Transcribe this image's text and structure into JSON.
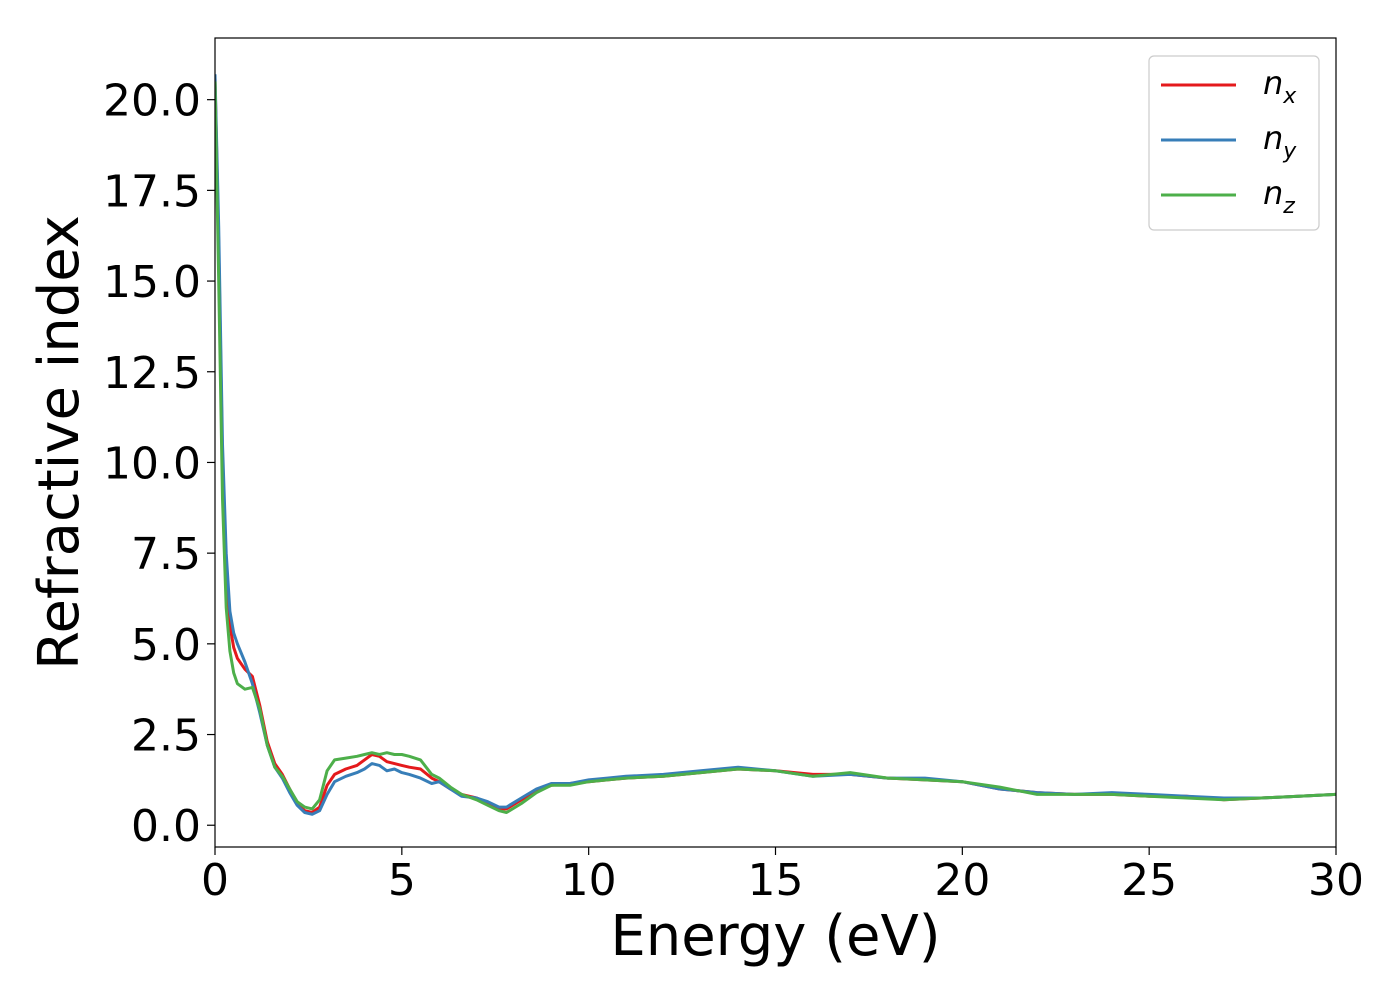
{
  "chart_data": {
    "type": "line",
    "xlabel": "Energy (eV)",
    "ylabel": "Refractive index",
    "xlim": [
      0,
      30
    ],
    "ylim": [
      -0.6,
      21.7
    ],
    "xticks": [
      0,
      5,
      10,
      15,
      20,
      25,
      30
    ],
    "xtick_labels": [
      "0",
      "5",
      "10",
      "15",
      "20",
      "25",
      "30"
    ],
    "yticks": [
      0,
      2.5,
      5,
      7.5,
      10,
      12.5,
      15,
      17.5,
      20
    ],
    "ytick_labels": [
      "0.0",
      "2.5",
      "5.0",
      "7.5",
      "10.0",
      "12.5",
      "15.0",
      "17.5",
      "20.0"
    ],
    "grid": false,
    "legend_position": "top-right",
    "series": [
      {
        "name": "n_x",
        "name_main": "n",
        "name_sub": "x",
        "color": "#e41a1c",
        "x": [
          0.0,
          0.1,
          0.2,
          0.3,
          0.4,
          0.5,
          0.6,
          0.8,
          1.0,
          1.2,
          1.4,
          1.6,
          1.8,
          2.0,
          2.2,
          2.4,
          2.6,
          2.8,
          3.0,
          3.2,
          3.5,
          3.8,
          4.0,
          4.2,
          4.4,
          4.6,
          4.8,
          5.0,
          5.2,
          5.5,
          5.8,
          6.0,
          6.3,
          6.6,
          7.0,
          7.3,
          7.6,
          7.8,
          8.2,
          8.6,
          9.0,
          9.5,
          10.0,
          10.5,
          11.0,
          12.0,
          13.0,
          14.0,
          15.0,
          16.0,
          17.0,
          18.0,
          19.0,
          20.0,
          21.0,
          22.0,
          23.0,
          24.0,
          25.0,
          26.0,
          27.0,
          28.0,
          29.0,
          30.0
        ],
        "y": [
          20.6,
          16.0,
          10.0,
          7.0,
          5.5,
          4.9,
          4.6,
          4.3,
          4.1,
          3.3,
          2.3,
          1.7,
          1.4,
          1.0,
          0.6,
          0.4,
          0.35,
          0.5,
          1.1,
          1.4,
          1.55,
          1.65,
          1.8,
          1.95,
          1.9,
          1.75,
          1.7,
          1.65,
          1.6,
          1.55,
          1.3,
          1.2,
          1.0,
          0.85,
          0.75,
          0.6,
          0.45,
          0.45,
          0.7,
          0.95,
          1.1,
          1.15,
          1.2,
          1.25,
          1.3,
          1.35,
          1.45,
          1.55,
          1.5,
          1.4,
          1.4,
          1.3,
          1.25,
          1.2,
          1.0,
          0.9,
          0.85,
          0.85,
          0.8,
          0.8,
          0.7,
          0.75,
          0.8,
          0.85
        ]
      },
      {
        "name": "n_y",
        "name_main": "n",
        "name_sub": "y",
        "color": "#377eb8",
        "x": [
          0.0,
          0.1,
          0.2,
          0.3,
          0.4,
          0.5,
          0.6,
          0.8,
          1.0,
          1.2,
          1.4,
          1.6,
          1.8,
          2.0,
          2.2,
          2.4,
          2.6,
          2.8,
          3.0,
          3.2,
          3.5,
          3.8,
          4.0,
          4.2,
          4.4,
          4.6,
          4.8,
          5.0,
          5.2,
          5.5,
          5.8,
          6.0,
          6.3,
          6.6,
          7.0,
          7.3,
          7.6,
          7.8,
          8.2,
          8.6,
          9.0,
          9.5,
          10.0,
          10.5,
          11.0,
          12.0,
          13.0,
          14.0,
          15.0,
          16.0,
          17.0,
          18.0,
          19.0,
          20.0,
          21.0,
          22.0,
          23.0,
          24.0,
          25.0,
          26.0,
          27.0,
          28.0,
          29.0,
          30.0
        ],
        "y": [
          20.7,
          16.5,
          10.5,
          7.5,
          5.9,
          5.3,
          5.0,
          4.5,
          3.9,
          3.1,
          2.2,
          1.6,
          1.3,
          0.9,
          0.55,
          0.35,
          0.3,
          0.4,
          0.85,
          1.2,
          1.35,
          1.45,
          1.55,
          1.7,
          1.65,
          1.5,
          1.55,
          1.45,
          1.4,
          1.3,
          1.15,
          1.2,
          1.0,
          0.8,
          0.75,
          0.65,
          0.5,
          0.5,
          0.75,
          1.0,
          1.15,
          1.15,
          1.25,
          1.3,
          1.35,
          1.4,
          1.5,
          1.6,
          1.5,
          1.35,
          1.4,
          1.3,
          1.3,
          1.2,
          1.0,
          0.9,
          0.85,
          0.9,
          0.85,
          0.8,
          0.75,
          0.75,
          0.8,
          0.85
        ]
      },
      {
        "name": "n_z",
        "name_main": "n",
        "name_sub": "z",
        "color": "#4daf4a",
        "x": [
          0.0,
          0.1,
          0.2,
          0.3,
          0.4,
          0.5,
          0.6,
          0.8,
          1.0,
          1.2,
          1.4,
          1.6,
          1.8,
          2.0,
          2.2,
          2.4,
          2.6,
          2.8,
          3.0,
          3.2,
          3.5,
          3.8,
          4.0,
          4.2,
          4.4,
          4.6,
          4.8,
          5.0,
          5.2,
          5.5,
          5.8,
          6.0,
          6.3,
          6.6,
          7.0,
          7.3,
          7.6,
          7.8,
          8.2,
          8.6,
          9.0,
          9.5,
          10.0,
          10.5,
          11.0,
          12.0,
          13.0,
          14.0,
          15.0,
          16.0,
          17.0,
          18.0,
          19.0,
          20.0,
          21.0,
          22.0,
          23.0,
          24.0,
          25.0,
          26.0,
          27.0,
          28.0,
          29.0,
          30.0
        ],
        "y": [
          20.5,
          15.0,
          9.0,
          6.0,
          4.8,
          4.2,
          3.9,
          3.75,
          3.8,
          3.2,
          2.2,
          1.6,
          1.35,
          1.0,
          0.65,
          0.5,
          0.45,
          0.7,
          1.5,
          1.8,
          1.85,
          1.9,
          1.95,
          2.0,
          1.95,
          2.0,
          1.95,
          1.95,
          1.9,
          1.8,
          1.4,
          1.3,
          1.05,
          0.85,
          0.7,
          0.55,
          0.4,
          0.35,
          0.6,
          0.9,
          1.1,
          1.1,
          1.2,
          1.25,
          1.3,
          1.35,
          1.45,
          1.55,
          1.5,
          1.35,
          1.45,
          1.3,
          1.25,
          1.2,
          1.05,
          0.85,
          0.85,
          0.85,
          0.8,
          0.75,
          0.7,
          0.75,
          0.8,
          0.85
        ]
      }
    ]
  }
}
